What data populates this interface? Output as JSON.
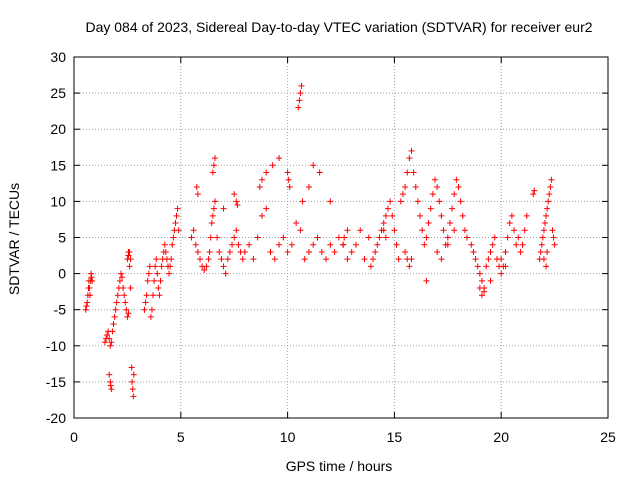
{
  "chart_data": {
    "type": "scatter",
    "title": "Day 084 of 2023, Sidereal Day-to-day VTEC variation (SDTVAR) for receiver eur2",
    "xlabel": "GPS time / hours",
    "ylabel": "SDTVAR / TECUs",
    "xlim": [
      0,
      25
    ],
    "ylim": [
      -20,
      30
    ],
    "xticks": [
      0,
      5,
      10,
      15,
      20,
      25
    ],
    "yticks": [
      -20,
      -15,
      -10,
      -5,
      0,
      5,
      10,
      15,
      20,
      25,
      30
    ],
    "xtick_labels": [
      "0",
      "5",
      "10",
      "15",
      "20",
      "25"
    ],
    "ytick_labels": [
      "-20",
      "-15",
      "-10",
      "-5",
      "0",
      "5",
      "10",
      "15",
      "20",
      "25",
      "30"
    ],
    "grid": true,
    "marker": "+",
    "color": "#ff0000",
    "series": [
      {
        "name": "SDTVAR",
        "x": [
          0.55,
          0.58,
          0.62,
          0.65,
          0.68,
          0.7,
          0.72,
          0.75,
          0.78,
          0.8,
          0.82,
          0.85,
          1.45,
          1.5,
          1.55,
          1.6,
          1.65,
          1.7,
          1.75,
          1.8,
          1.85,
          1.9,
          1.95,
          2.0,
          2.05,
          2.1,
          2.15,
          2.2,
          2.25,
          2.3,
          2.35,
          2.4,
          2.45,
          2.5,
          2.55,
          1.65,
          1.7,
          1.72,
          1.75,
          2.5,
          2.55,
          2.6,
          2.65,
          2.7,
          2.72,
          2.75,
          2.78,
          2.8,
          2.55,
          2.6,
          2.65,
          3.3,
          3.35,
          3.4,
          3.45,
          3.5,
          3.55,
          3.6,
          3.65,
          3.7,
          3.75,
          3.8,
          3.85,
          3.9,
          3.95,
          4.0,
          4.05,
          4.1,
          4.15,
          4.2,
          4.25,
          4.3,
          4.35,
          4.4,
          4.45,
          4.5,
          4.55,
          4.6,
          4.65,
          4.7,
          4.75,
          4.8,
          4.85,
          4.9,
          5.5,
          5.6,
          5.7,
          5.8,
          5.9,
          6.0,
          6.1,
          6.2,
          6.3,
          6.35,
          6.4,
          6.45,
          6.5,
          6.55,
          6.6,
          6.7,
          6.8,
          6.9,
          7.0,
          7.1,
          7.2,
          7.3,
          7.4,
          7.5,
          7.6,
          7.7,
          7.8,
          7.9,
          5.75,
          5.8,
          6.5,
          6.55,
          6.6,
          7.0,
          7.5,
          7.6,
          7.65,
          8.0,
          8.2,
          8.4,
          8.6,
          8.8,
          9.0,
          9.2,
          9.4,
          9.6,
          9.8,
          10.0,
          10.2,
          10.4,
          10.6,
          10.8,
          11.0,
          11.2,
          11.4,
          11.6,
          11.8,
          12.0,
          12.2,
          12.4,
          12.6,
          12.8,
          13.0,
          13.2,
          13.4,
          13.6,
          13.8,
          8.7,
          8.8,
          9.0,
          9.3,
          9.6,
          10.0,
          10.05,
          10.1,
          10.5,
          10.55,
          10.6,
          10.65,
          10.7,
          11.0,
          11.2,
          11.5,
          12.0,
          12.6,
          12.65,
          12.8,
          13.9,
          14.0,
          14.1,
          14.2,
          14.3,
          14.4,
          14.5,
          14.6,
          14.7,
          14.8,
          14.9,
          15.0,
          15.1,
          15.2,
          15.3,
          15.4,
          15.5,
          15.6,
          15.7,
          15.8,
          15.9,
          16.0,
          16.1,
          16.2,
          16.3,
          16.4,
          16.5,
          16.6,
          16.7,
          16.8,
          16.9,
          17.0,
          17.1,
          17.2,
          17.3,
          17.4,
          17.5,
          17.6,
          17.7,
          17.8,
          17.9,
          18.0,
          18.1,
          18.2,
          18.3,
          18.4,
          14.5,
          14.6,
          15.5,
          15.6,
          15.7,
          15.8,
          16.5,
          17.0,
          17.2,
          17.5,
          17.8,
          18.6,
          18.7,
          18.8,
          18.9,
          19.0,
          19.1,
          19.2,
          19.3,
          19.4,
          19.5,
          19.6,
          19.7,
          19.8,
          19.9,
          20.0,
          20.1,
          20.2,
          20.3,
          20.4,
          20.5,
          20.6,
          20.7,
          20.8,
          20.9,
          21.0,
          21.1,
          21.2,
          19.0,
          19.1,
          19.2,
          19.5,
          20.0,
          20.2,
          21.5,
          21.55,
          21.8,
          21.85,
          21.9,
          21.95,
          22.0,
          22.05,
          22.1,
          22.15,
          22.2,
          22.25,
          22.3,
          22.35,
          22.4,
          22.45,
          22.5,
          22.0,
          22.1,
          22.15
        ],
        "y": [
          -5,
          -4.5,
          -4,
          -3,
          -2,
          -1,
          -2,
          -3,
          -1,
          0,
          -0.5,
          -1,
          -9.5,
          -9,
          -8.5,
          -8,
          -9,
          -10,
          -9.5,
          -8,
          -7,
          -6,
          -5,
          -4,
          -3,
          -2,
          -1,
          0,
          -0.5,
          -2,
          -3,
          -4,
          -5,
          -6,
          -5.5,
          -14,
          -15,
          -15.5,
          -16,
          2,
          3,
          1,
          -2,
          -13,
          -15,
          -16,
          -17,
          -14,
          2.5,
          3,
          2,
          -5,
          -4,
          -3,
          -1,
          0,
          1,
          -6,
          -5,
          -3,
          -1,
          1,
          2,
          0,
          -2,
          -3,
          -1,
          1,
          2,
          3,
          4,
          3,
          2,
          1,
          0,
          1,
          2,
          4,
          5,
          6,
          7,
          8,
          9,
          6,
          5,
          6,
          4,
          3,
          2,
          1,
          0.5,
          1,
          2,
          3,
          5,
          7,
          8,
          9,
          10,
          5,
          3,
          2,
          1,
          0,
          2,
          3,
          4,
          5,
          6,
          4,
          3,
          2,
          12,
          11,
          14,
          15,
          16,
          9,
          11,
          10,
          9.5,
          3,
          4,
          2,
          5,
          8,
          9,
          3,
          2,
          4,
          5,
          3,
          4,
          7,
          6,
          2,
          3,
          4,
          5,
          3,
          2,
          4,
          3,
          5,
          4,
          2,
          3,
          4,
          6,
          2,
          5,
          12,
          13,
          14,
          15,
          16,
          14,
          13,
          12,
          23,
          24,
          25,
          26,
          10,
          12,
          15,
          14,
          10,
          4,
          5,
          6,
          1,
          2,
          3,
          4,
          5,
          6,
          7,
          8,
          9,
          10,
          8,
          6,
          4,
          2,
          10,
          11,
          12,
          14,
          16,
          17,
          14,
          12,
          10,
          8,
          6,
          4,
          5,
          7,
          9,
          11,
          13,
          12,
          10,
          8,
          6,
          4,
          5,
          7,
          9,
          11,
          13,
          12,
          10,
          8,
          6,
          5,
          6,
          5,
          3,
          2,
          1,
          2,
          -1,
          3,
          2,
          4,
          6,
          4,
          3,
          2,
          1,
          0,
          -1,
          -2,
          1,
          2,
          3,
          4,
          5,
          2,
          1,
          0,
          1,
          3,
          5,
          7,
          8,
          6,
          4,
          5,
          3,
          4,
          6,
          8,
          -2,
          -3,
          -2.5,
          -1,
          2,
          1,
          11,
          11.5,
          2,
          3,
          4,
          5,
          6,
          7,
          8,
          9,
          10,
          11,
          12,
          13,
          6,
          5,
          4,
          2,
          1,
          3
        ]
      }
    ]
  }
}
